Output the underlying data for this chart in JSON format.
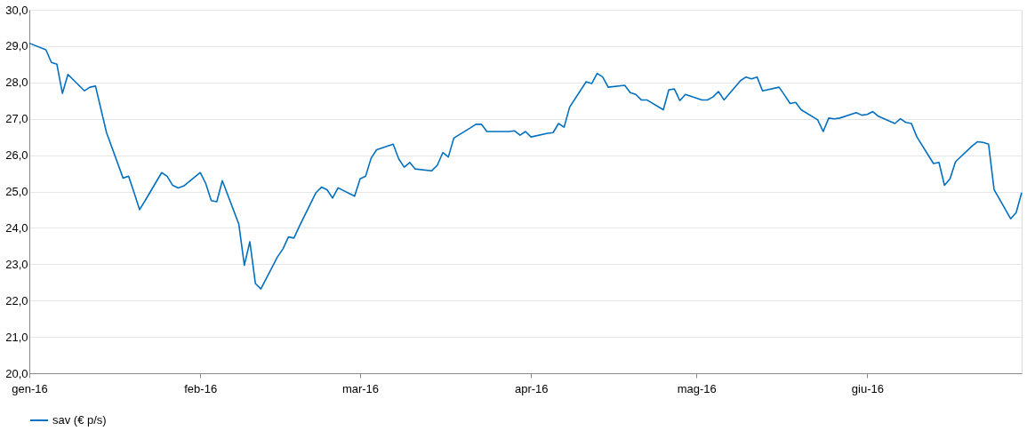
{
  "chart_data": {
    "type": "line",
    "legend": "bottom",
    "grid": "y",
    "line_style": "solid",
    "marker": "none",
    "xlim": [
      "2016-01-01",
      "2016-06-29"
    ],
    "xticks": [
      {
        "value": "2016-01-01",
        "label": "gen-16"
      },
      {
        "value": "2016-02-01",
        "label": "feb-16"
      },
      {
        "value": "2016-03-01",
        "label": "mar-16"
      },
      {
        "value": "2016-04-01",
        "label": "apr-16"
      },
      {
        "value": "2016-05-01",
        "label": "mag-16"
      },
      {
        "value": "2016-06-01",
        "label": "giu-16"
      }
    ],
    "ylim": [
      20,
      30
    ],
    "yticks": [
      {
        "value": 20,
        "label": "20,0"
      },
      {
        "value": 21,
        "label": "21,0"
      },
      {
        "value": 22,
        "label": "22,0"
      },
      {
        "value": 23,
        "label": "23,0"
      },
      {
        "value": 24,
        "label": "24,0"
      },
      {
        "value": 25,
        "label": "25,0"
      },
      {
        "value": 26,
        "label": "26,0"
      },
      {
        "value": 27,
        "label": "27,0"
      },
      {
        "value": 28,
        "label": "28,0"
      },
      {
        "value": 29,
        "label": "29,0"
      },
      {
        "value": 30,
        "label": "30,0"
      }
    ],
    "x": [
      "2016-01-01",
      "2016-01-04",
      "2016-01-05",
      "2016-01-06",
      "2016-01-07",
      "2016-01-08",
      "2016-01-11",
      "2016-01-12",
      "2016-01-13",
      "2016-01-15",
      "2016-01-18",
      "2016-01-19",
      "2016-01-20",
      "2016-01-21",
      "2016-01-22",
      "2016-01-25",
      "2016-01-26",
      "2016-01-27",
      "2016-01-28",
      "2016-01-29",
      "2016-02-01",
      "2016-02-02",
      "2016-02-03",
      "2016-02-04",
      "2016-02-05",
      "2016-02-08",
      "2016-02-09",
      "2016-02-10",
      "2016-02-11",
      "2016-02-12",
      "2016-02-15",
      "2016-02-16",
      "2016-02-17",
      "2016-02-18",
      "2016-02-19",
      "2016-02-22",
      "2016-02-23",
      "2016-02-24",
      "2016-02-25",
      "2016-02-26",
      "2016-02-29",
      "2016-03-01",
      "2016-03-02",
      "2016-03-03",
      "2016-03-04",
      "2016-03-07",
      "2016-03-08",
      "2016-03-09",
      "2016-03-10",
      "2016-03-11",
      "2016-03-14",
      "2016-03-15",
      "2016-03-16",
      "2016-03-17",
      "2016-03-18",
      "2016-03-21",
      "2016-03-22",
      "2016-03-23",
      "2016-03-24",
      "2016-03-28",
      "2016-03-29",
      "2016-03-30",
      "2016-03-31",
      "2016-04-01",
      "2016-04-04",
      "2016-04-05",
      "2016-04-06",
      "2016-04-07",
      "2016-04-08",
      "2016-04-11",
      "2016-04-12",
      "2016-04-13",
      "2016-04-14",
      "2016-04-15",
      "2016-04-18",
      "2016-04-19",
      "2016-04-20",
      "2016-04-21",
      "2016-04-22",
      "2016-04-25",
      "2016-04-26",
      "2016-04-27",
      "2016-04-28",
      "2016-04-29",
      "2016-05-02",
      "2016-05-03",
      "2016-05-04",
      "2016-05-05",
      "2016-05-06",
      "2016-05-09",
      "2016-05-10",
      "2016-05-11",
      "2016-05-12",
      "2016-05-13",
      "2016-05-16",
      "2016-05-17",
      "2016-05-18",
      "2016-05-19",
      "2016-05-20",
      "2016-05-23",
      "2016-05-24",
      "2016-05-25",
      "2016-05-26",
      "2016-05-27",
      "2016-05-30",
      "2016-05-31",
      "2016-06-01",
      "2016-06-02",
      "2016-06-03",
      "2016-06-06",
      "2016-06-07",
      "2016-06-08",
      "2016-06-09",
      "2016-06-10",
      "2016-06-13",
      "2016-06-14",
      "2016-06-15",
      "2016-06-16",
      "2016-06-17",
      "2016-06-20",
      "2016-06-21",
      "2016-06-22",
      "2016-06-23",
      "2016-06-24",
      "2016-06-27",
      "2016-06-28",
      "2016-06-29"
    ],
    "series": [
      {
        "name": "sav (€ p/s)",
        "color": "#0070c0",
        "values": [
          29.08,
          28.9,
          28.55,
          28.5,
          27.7,
          28.22,
          27.77,
          27.87,
          27.9,
          26.62,
          25.37,
          25.42,
          24.97,
          24.5,
          24.75,
          25.52,
          25.42,
          25.17,
          25.1,
          25.15,
          25.52,
          25.22,
          24.75,
          24.72,
          25.3,
          24.1,
          22.97,
          23.62,
          22.47,
          22.32,
          23.2,
          23.42,
          23.75,
          23.72,
          24.05,
          24.97,
          25.12,
          25.05,
          24.82,
          25.1,
          24.87,
          25.35,
          25.42,
          25.92,
          26.15,
          26.3,
          25.9,
          25.67,
          25.8,
          25.62,
          25.57,
          25.72,
          26.07,
          25.95,
          26.47,
          26.75,
          26.85,
          26.85,
          26.65,
          26.65,
          26.67,
          26.55,
          26.65,
          26.5,
          26.6,
          26.62,
          26.87,
          26.77,
          27.32,
          28.02,
          27.97,
          28.25,
          28.15,
          27.87,
          27.92,
          27.72,
          27.67,
          27.52,
          27.52,
          27.25,
          27.8,
          27.82,
          27.5,
          27.67,
          27.52,
          27.52,
          27.6,
          27.75,
          27.52,
          28.05,
          28.15,
          28.1,
          28.15,
          27.77,
          27.87,
          27.65,
          27.42,
          27.45,
          27.25,
          26.97,
          26.65,
          27.02,
          27.0,
          27.02,
          27.17,
          27.1,
          27.12,
          27.2,
          27.07,
          26.87,
          27.0,
          26.9,
          26.87,
          26.5,
          25.77,
          25.8,
          25.17,
          25.35,
          25.82,
          26.25,
          26.37,
          26.35,
          26.3,
          25.05,
          24.25,
          24.42,
          24.97
        ]
      }
    ]
  }
}
